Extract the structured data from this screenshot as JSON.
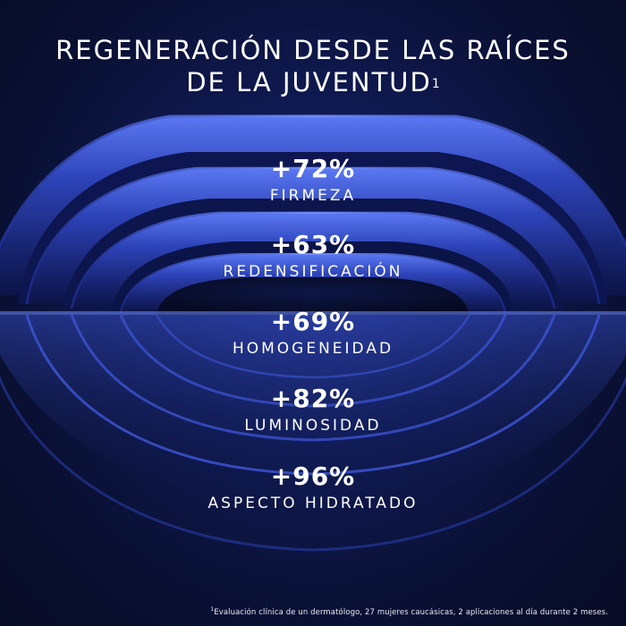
{
  "headline": {
    "line1": "REGENERACIÓN DESDE LAS RAÍCES",
    "line2": "DE LA JUVENTUD",
    "marker": "1"
  },
  "stats": [
    {
      "value": "+72%",
      "label": "FIRMEZA"
    },
    {
      "value": "+63%",
      "label": "REDENSIFICACIÓN"
    },
    {
      "value": "+69%",
      "label": "HOMOGENEIDAD"
    },
    {
      "value": "+82%",
      "label": "LUMINOSIDAD"
    },
    {
      "value": "+96%",
      "label": "ASPECTO HIDRATADO"
    }
  ],
  "footnote": {
    "marker": "1",
    "text": "Evaluación clínica de un dermatólogo, 27 mujeres caucásicas, 2 aplicaciones al día durante 2 meses."
  },
  "colors": {
    "background": "#0b1236",
    "ring_highlight": "#4a66e8",
    "ring_shadow": "#0a1040",
    "text": "#ffffff"
  }
}
